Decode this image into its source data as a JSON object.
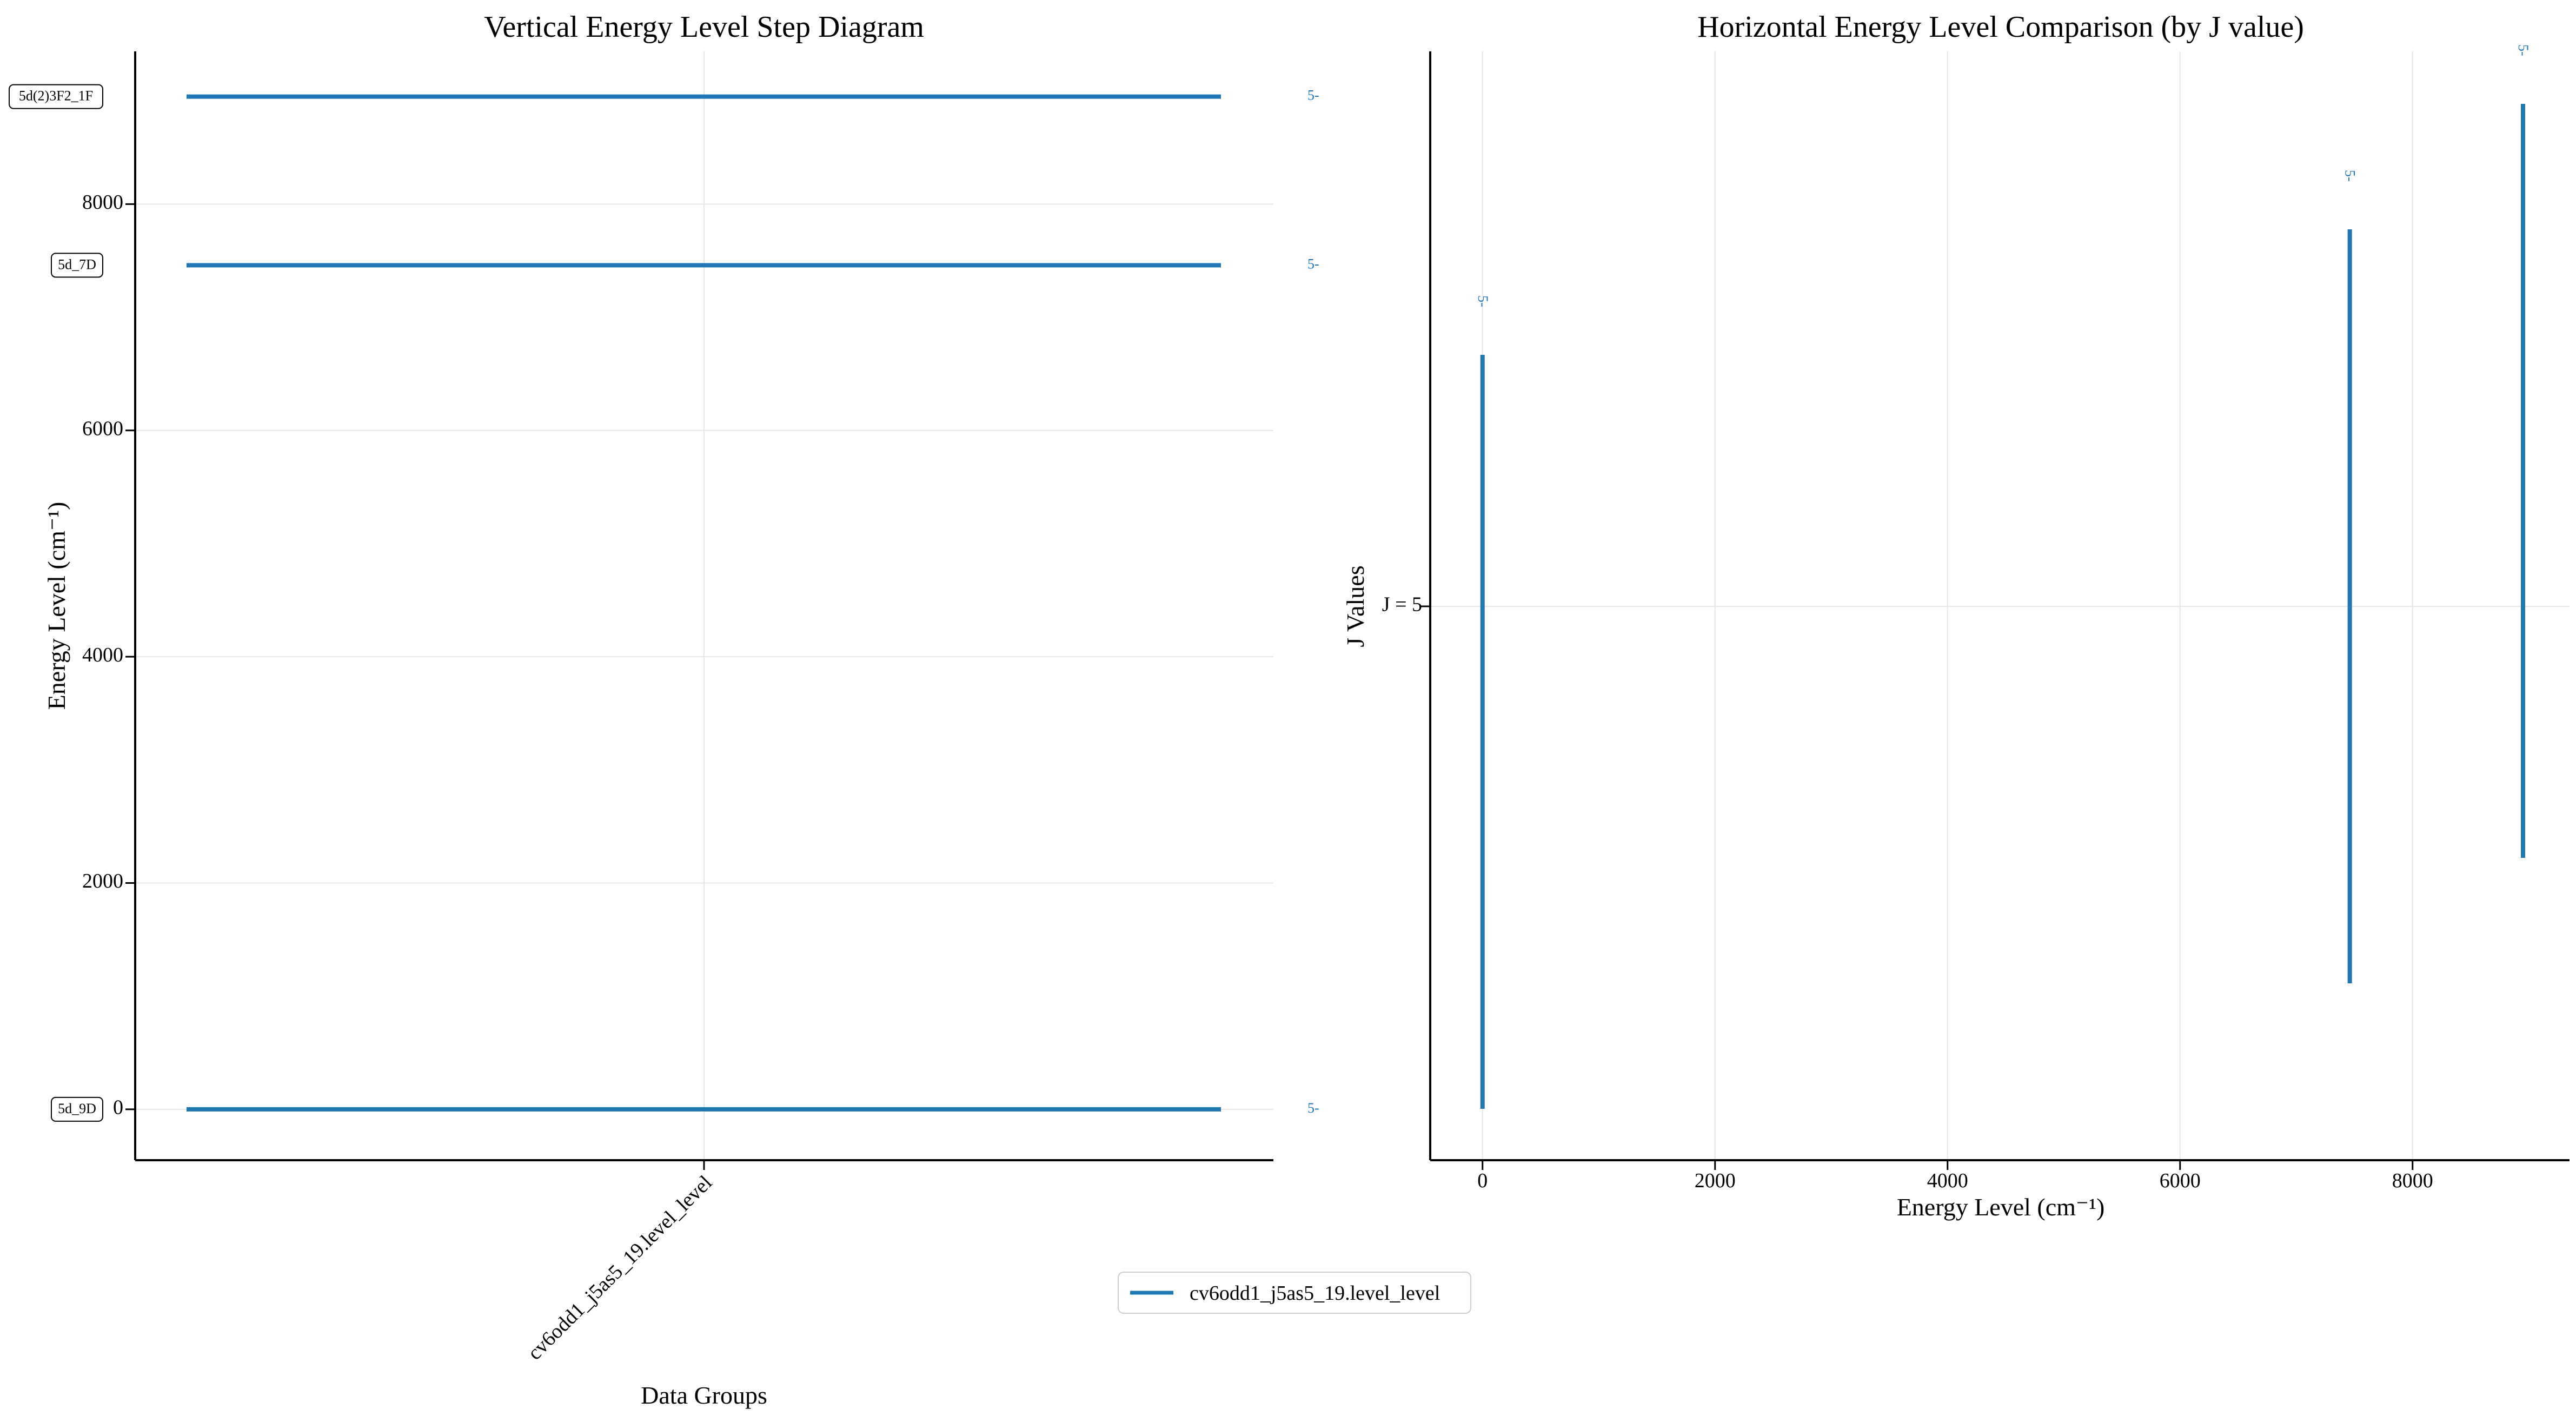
{
  "colors": {
    "series": "#1f77b4",
    "grid": "#e6e6e6",
    "axis": "#000000"
  },
  "legend": {
    "label": "cv6odd1_j5as5_19.level_level",
    "placement": "bottom-center"
  },
  "chart_data": [
    {
      "type": "line",
      "title": "Vertical Energy Level Step Diagram",
      "xlabel": "Data Groups",
      "ylabel": "Energy Level (cm⁻¹)",
      "categories": [
        "cv6odd1_j5as5_19.level_level"
      ],
      "ylim": [
        -450,
        9350
      ],
      "yticks": [
        0,
        2000,
        4000,
        6000,
        8000
      ],
      "grid": true,
      "series": [
        {
          "name": "cv6odd1_j5as5_19.level_level",
          "levels": [
            {
              "energy": 0,
              "label": "5d_9D",
              "j": "5"
            },
            {
              "energy": 7460,
              "label": "5d_7D",
              "j": "5"
            },
            {
              "energy": 8950,
              "label": "5d(2)3F2_1F",
              "j": "5"
            }
          ]
        }
      ]
    },
    {
      "type": "line",
      "title": "Horizontal Energy Level Comparison (by J value)",
      "xlabel": "Energy Level (cm⁻¹)",
      "ylabel": "J Values",
      "xlim": [
        -450,
        9350
      ],
      "xticks": [
        0,
        2000,
        4000,
        6000,
        8000
      ],
      "ycategories": [
        "J = 5"
      ],
      "grid": true,
      "series": [
        {
          "name": "cv6odd1_j5as5_19.level_level",
          "points": [
            {
              "energy": 0,
              "j_label": "5"
            },
            {
              "energy": 7460,
              "j_label": "5"
            },
            {
              "energy": 8950,
              "j_label": "5"
            }
          ]
        }
      ]
    }
  ]
}
